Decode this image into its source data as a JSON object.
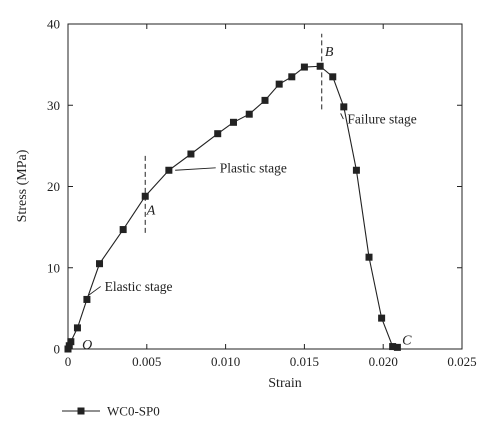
{
  "chart_data": {
    "type": "line",
    "xlabel": "Strain",
    "ylabel": "Stress (MPa)",
    "xlim": [
      0,
      0.025
    ],
    "ylim": [
      0,
      40
    ],
    "xticks": [
      0,
      0.005,
      0.01,
      0.015,
      0.02,
      0.025
    ],
    "xtick_labels": [
      "0",
      "0.005",
      "0.010",
      "0.015",
      "0.020",
      "0.025"
    ],
    "yticks": [
      0,
      10,
      20,
      30,
      40
    ],
    "ytick_labels": [
      "0",
      "10",
      "20",
      "30",
      "40"
    ],
    "grid": false,
    "legend_position": "bottom-left",
    "series": [
      {
        "name": "WC0-SP0",
        "color": "#222222",
        "marker": "square",
        "x": [
          0.0,
          8e-05,
          0.00018,
          0.0006,
          0.0012,
          0.002,
          0.0035,
          0.0049,
          0.0064,
          0.0078,
          0.0095,
          0.0105,
          0.0115,
          0.0125,
          0.0134,
          0.0142,
          0.015,
          0.016,
          0.0168,
          0.0175,
          0.0183,
          0.0191,
          0.0199,
          0.0206,
          0.0209
        ],
        "y": [
          0.0,
          0.4,
          0.9,
          2.6,
          6.1,
          10.5,
          14.7,
          18.8,
          22.0,
          24.0,
          26.5,
          27.9,
          28.9,
          30.6,
          32.6,
          33.5,
          34.7,
          34.8,
          33.5,
          29.8,
          22.0,
          11.3,
          3.8,
          0.3,
          0.2
        ]
      }
    ],
    "reference_lines": [
      {
        "x": 0.0049,
        "y_from": 14.3,
        "y_to": 23.8,
        "style": "dashed"
      },
      {
        "x": 0.0161,
        "y_from": 29.5,
        "y_to": 38.8,
        "style": "dashed"
      }
    ],
    "point_labels": [
      {
        "text": "O",
        "x": 0.0009,
        "y": 0.6
      },
      {
        "text": "A",
        "x": 0.005,
        "y": 17.2
      },
      {
        "text": "B",
        "x": 0.0163,
        "y": 36.7
      },
      {
        "text": "C",
        "x": 0.0212,
        "y": 1.2
      }
    ],
    "annotations": [
      {
        "text": "Elastic stage",
        "label_x": 0.0022,
        "label_y": 7.7,
        "arrow_to_x": 0.0013,
        "arrow_to_y": 6.6
      },
      {
        "text": "Plastic stage",
        "label_x": 0.0095,
        "label_y": 22.3,
        "arrow_to_x": 0.0068,
        "arrow_to_y": 22.0
      },
      {
        "text": "Failure stage",
        "label_x": 0.0176,
        "label_y": 28.3,
        "arrow_to_x": 0.0173,
        "arrow_to_y": 29.0
      }
    ]
  }
}
